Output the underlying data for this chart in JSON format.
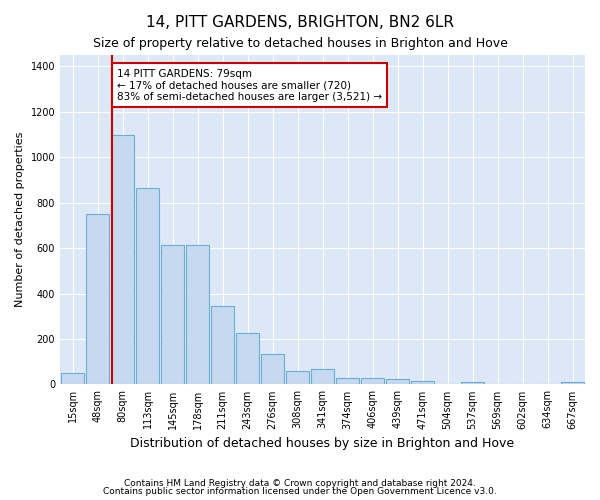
{
  "title": "14, PITT GARDENS, BRIGHTON, BN2 6LR",
  "subtitle": "Size of property relative to detached houses in Brighton and Hove",
  "xlabel": "Distribution of detached houses by size in Brighton and Hove",
  "ylabel": "Number of detached properties",
  "footnote1": "Contains HM Land Registry data © Crown copyright and database right 2024.",
  "footnote2": "Contains public sector information licensed under the Open Government Licence v3.0.",
  "bar_labels": [
    "15sqm",
    "48sqm",
    "80sqm",
    "113sqm",
    "145sqm",
    "178sqm",
    "211sqm",
    "243sqm",
    "276sqm",
    "308sqm",
    "341sqm",
    "374sqm",
    "406sqm",
    "439sqm",
    "471sqm",
    "504sqm",
    "537sqm",
    "569sqm",
    "602sqm",
    "634sqm",
    "667sqm"
  ],
  "bar_values": [
    50,
    750,
    1100,
    865,
    615,
    615,
    345,
    225,
    135,
    60,
    68,
    30,
    30,
    22,
    15,
    0,
    12,
    0,
    0,
    0,
    12
  ],
  "bar_color": "#c5d9f0",
  "bar_edgecolor": "#6baed6",
  "annotation_line1": "14 PITT GARDENS: 79sqm",
  "annotation_line2": "← 17% of detached houses are smaller (720)",
  "annotation_line3": "83% of semi-detached houses are larger (3,521) →",
  "annotation_box_facecolor": "#ffffff",
  "annotation_box_edgecolor": "#cc0000",
  "vline_color": "#cc0000",
  "ylim": [
    0,
    1450
  ],
  "yticks": [
    0,
    200,
    400,
    600,
    800,
    1000,
    1200,
    1400
  ],
  "background_color": "#dce8f5",
  "grid_color": "#ffffff",
  "title_fontsize": 11,
  "subtitle_fontsize": 9,
  "xlabel_fontsize": 9,
  "ylabel_fontsize": 8,
  "tick_fontsize": 7,
  "footnote_fontsize": 6.5,
  "annotation_fontsize": 7.5
}
